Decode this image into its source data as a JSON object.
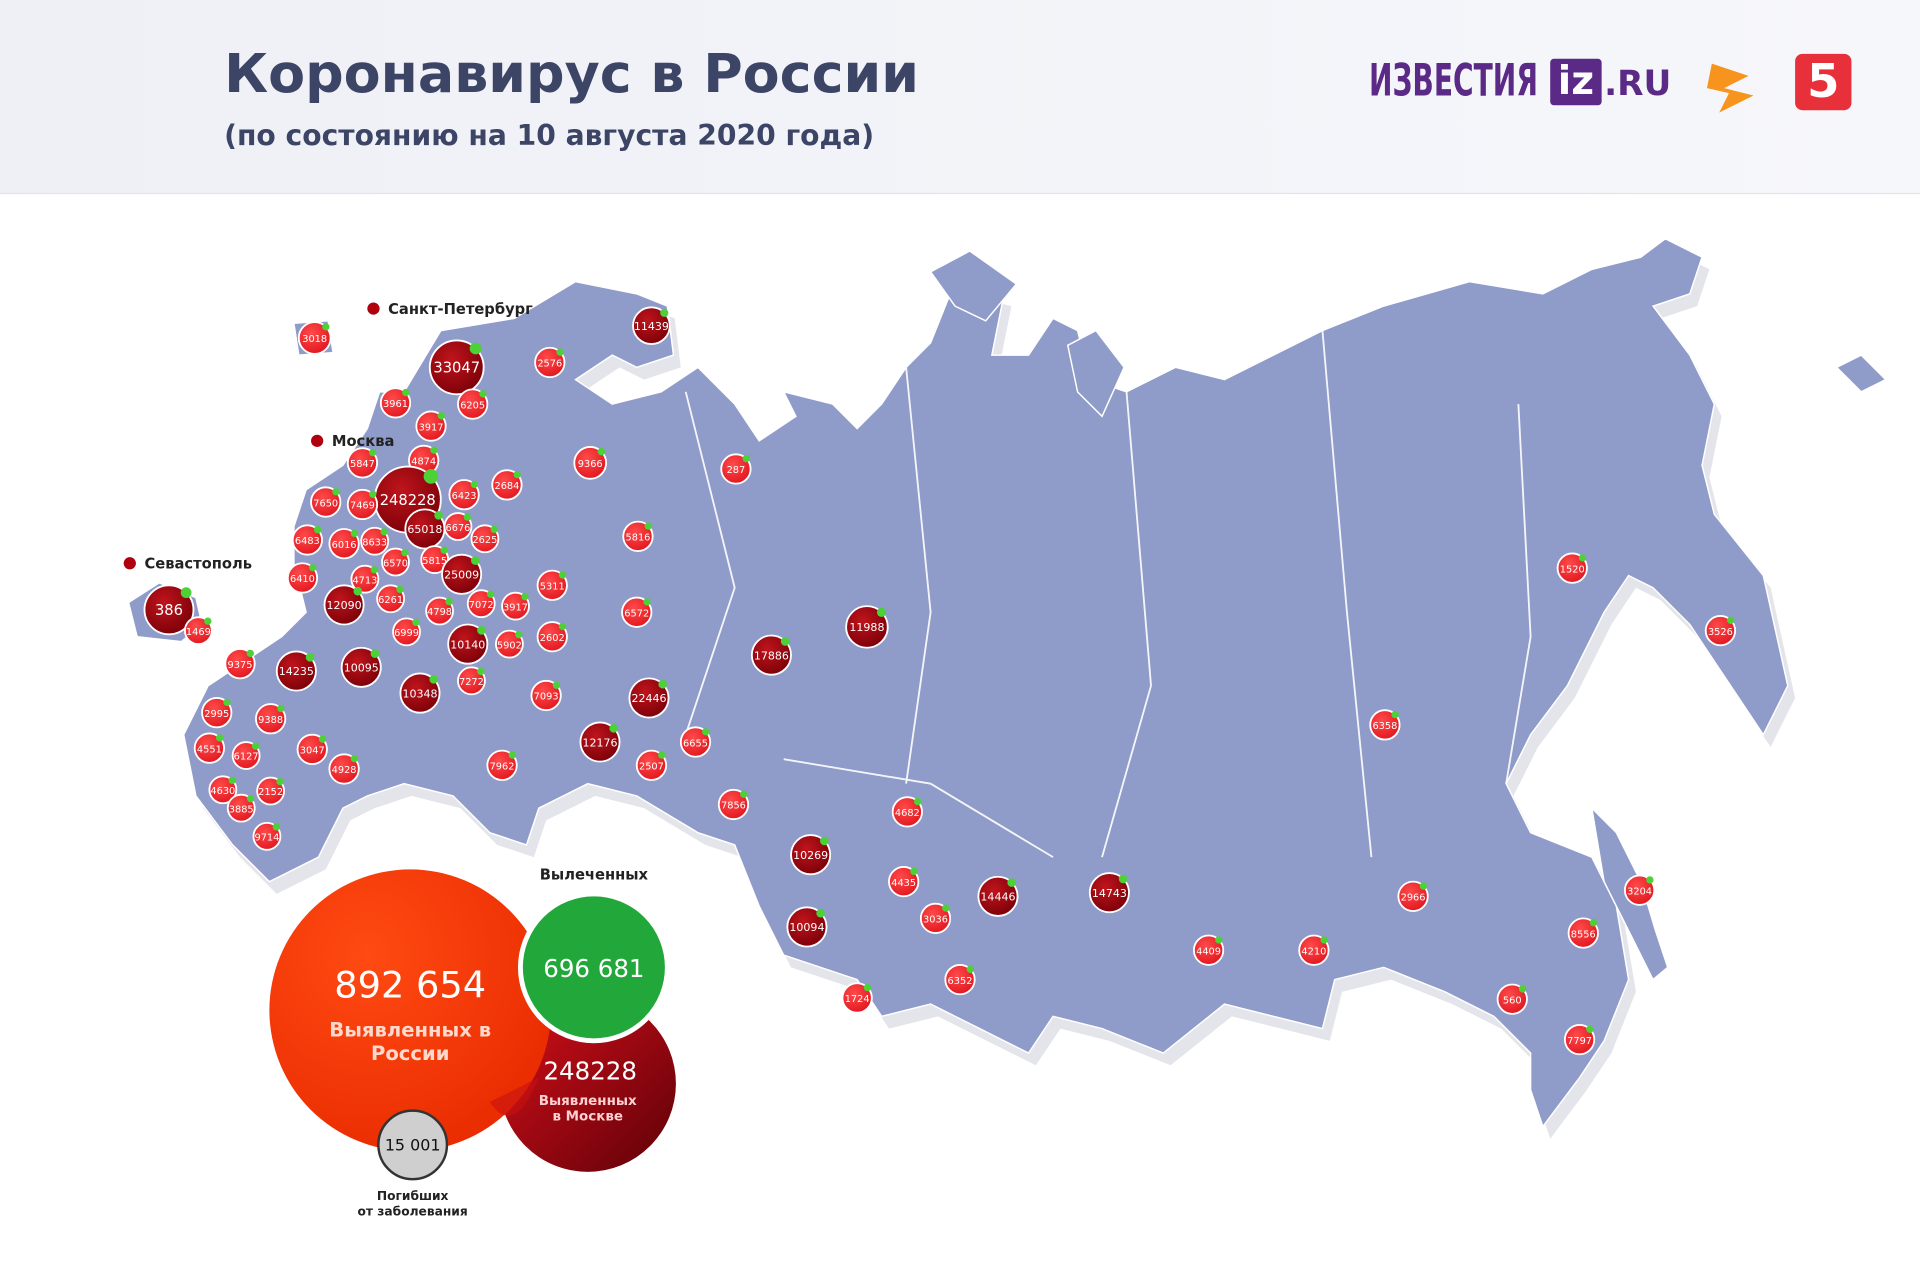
{
  "header": {
    "title": "Коронавирус в России",
    "subtitle": "(по состоянию на 10 августа 2020 года)",
    "logos": [
      "ИЗВЕСТИЯ",
      "iz",
      ".RU",
      "5"
    ]
  },
  "map": {
    "cities": [
      "Санкт-Петербург",
      "Москва",
      "Севастополь"
    ],
    "regions": [
      3018,
      33047,
      2576,
      11439,
      3961,
      6205,
      3917,
      4874,
      5847,
      9366,
      287,
      2684,
      248228,
      6423,
      7650,
      7469,
      65018,
      6676,
      2625,
      6483,
      6016,
      8633,
      5816,
      6570,
      5815,
      4713,
      25009,
      6410,
      5311,
      1520,
      386,
      6261,
      12090,
      4798,
      7072,
      3917,
      6572,
      11988,
      3526,
      1469,
      6999,
      2602,
      10140,
      5902,
      17886,
      9375,
      14235,
      10095,
      7272,
      7093,
      22446,
      10348,
      9388,
      2995,
      6358,
      4551,
      6127,
      3047,
      6655,
      12176,
      4928,
      2507,
      7962,
      4630,
      2152,
      7856,
      3885,
      4682,
      9714,
      10269,
      4435,
      14446,
      14743,
      3204,
      2966,
      3036,
      10094,
      8556,
      4409,
      4210,
      6352,
      1724,
      560,
      7797
    ]
  },
  "summary": {
    "cases": {
      "value": "892 654",
      "label": [
        "Выявленных в",
        "России"
      ]
    },
    "recovered": {
      "title": "Вылеченных",
      "value": "696 681"
    },
    "moscow": {
      "value": 248228,
      "label": [
        "Выявленных",
        "в Москве"
      ]
    },
    "deaths": {
      "value": "15 001",
      "label": [
        "Погибших",
        "от заболевания"
      ]
    }
  }
}
